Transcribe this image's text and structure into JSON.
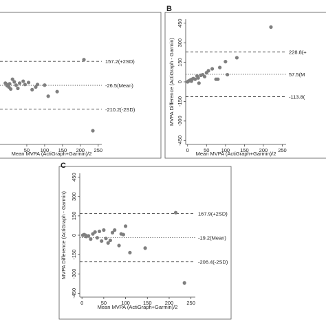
{
  "chart_data": [
    {
      "type": "scatter",
      "panel_label": "",
      "xlabel": "Mean MVPA (ActiGraph+Garmin)/2",
      "ylabel": "",
      "xticks": [
        "50",
        "100",
        "150",
        "200",
        "250"
      ],
      "yticks": [],
      "xlim": [
        -25,
        260
      ],
      "ylim": [
        -480,
        480
      ],
      "ref_lines": [
        {
          "value": 157.2,
          "label": "157.2(+2SD)",
          "style": "dashed"
        },
        {
          "value": -26.5,
          "label": "-26.5(Mean)",
          "style": "dotted"
        },
        {
          "value": -210.2,
          "label": "-210.2(-2SD)",
          "style": "dashed"
        }
      ],
      "points": {
        "x": [
          -10,
          -5,
          -2,
          0,
          2,
          5,
          10,
          15,
          20,
          25,
          30,
          40,
          45,
          55,
          65,
          75,
          80,
          100,
          110,
          135,
          210,
          235
        ],
        "y": [
          -10,
          -30,
          -20,
          -40,
          -15,
          -55,
          20,
          0,
          -25,
          -50,
          -10,
          5,
          -20,
          -5,
          -60,
          -40,
          -20,
          -25,
          -110,
          -75,
          170,
          -375
        ]
      }
    },
    {
      "type": "scatter",
      "panel_label": "B",
      "xlabel": "Mean MVPA (ActiGraph+Garmin)/2",
      "ylabel": "MVPA Difference (ActiGraph - Garmin)",
      "xticks": [
        "0",
        "50",
        "100",
        "150",
        "200",
        "250"
      ],
      "yticks": [
        "450",
        "300",
        "150",
        "0",
        "-150",
        "-300",
        "-450"
      ],
      "xlim": [
        -5,
        260
      ],
      "ylim": [
        -480,
        480
      ],
      "ref_lines": [
        {
          "value": 228.8,
          "label": "228.8(+",
          "style": "dashed"
        },
        {
          "value": 57.5,
          "label": "57.5(M",
          "style": "dotted"
        },
        {
          "value": -113.8,
          "label": "-113.8(",
          "style": "dashed"
        }
      ],
      "points": {
        "x": [
          0,
          2,
          5,
          8,
          10,
          12,
          15,
          20,
          25,
          28,
          30,
          35,
          40,
          45,
          50,
          55,
          65,
          75,
          80,
          85,
          100,
          105,
          130,
          220
        ],
        "y": [
          0,
          5,
          10,
          15,
          5,
          20,
          25,
          20,
          45,
          30,
          -10,
          50,
          55,
          40,
          70,
          85,
          100,
          20,
          20,
          110,
          155,
          55,
          185,
          420
        ]
      }
    },
    {
      "type": "scatter",
      "panel_label": "C",
      "xlabel": "Mean MVPA (ActiGraph+Garmin)/2",
      "ylabel": "MVPA Difference (ActiGraph - Garmin)",
      "xticks": [
        "0",
        "50",
        "100",
        "150",
        "200",
        "250"
      ],
      "yticks": [
        "450",
        "300",
        "150",
        "0",
        "-150",
        "-300",
        "-450"
      ],
      "xlim": [
        -5,
        260
      ],
      "ylim": [
        -480,
        480
      ],
      "ref_lines": [
        {
          "value": 167.9,
          "label": "167.9(+2SD)",
          "style": "dashed"
        },
        {
          "value": -19.2,
          "label": "-19.2(Mean)",
          "style": "dotted"
        },
        {
          "value": -206.4,
          "label": "-206.4(-2SD)",
          "style": "dashed"
        }
      ],
      "points": {
        "x": [
          2,
          5,
          8,
          10,
          15,
          20,
          25,
          30,
          35,
          40,
          45,
          50,
          55,
          60,
          65,
          70,
          75,
          85,
          90,
          95,
          100,
          110,
          145,
          215,
          235
        ],
        "y": [
          0,
          5,
          0,
          -10,
          -5,
          -30,
          10,
          25,
          -20,
          30,
          -45,
          40,
          -25,
          -60,
          -40,
          20,
          40,
          -80,
          10,
          5,
          70,
          -135,
          -100,
          175,
          -370
        ]
      }
    }
  ]
}
